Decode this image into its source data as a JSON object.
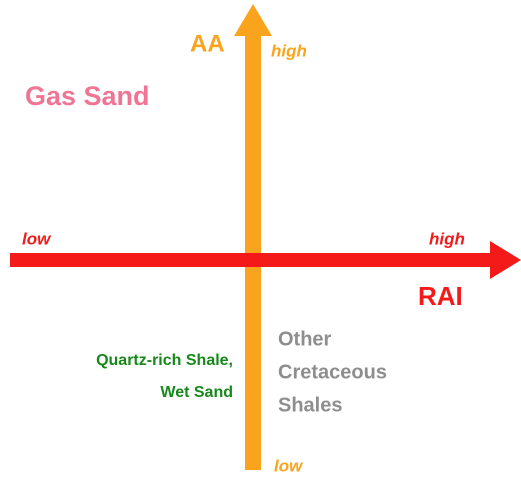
{
  "vertical_axis": {
    "label": "AA",
    "high": "high",
    "low": "low"
  },
  "horizontal_axis": {
    "label": "RAI",
    "high": "high",
    "low": "low"
  },
  "regions": {
    "top_left": [
      "Gas Sand"
    ],
    "bottom_left": [
      "Quartz-rich Shale,",
      "Wet Sand"
    ],
    "bottom_right": [
      "Other",
      "Cretaceous",
      "Shales"
    ]
  }
}
